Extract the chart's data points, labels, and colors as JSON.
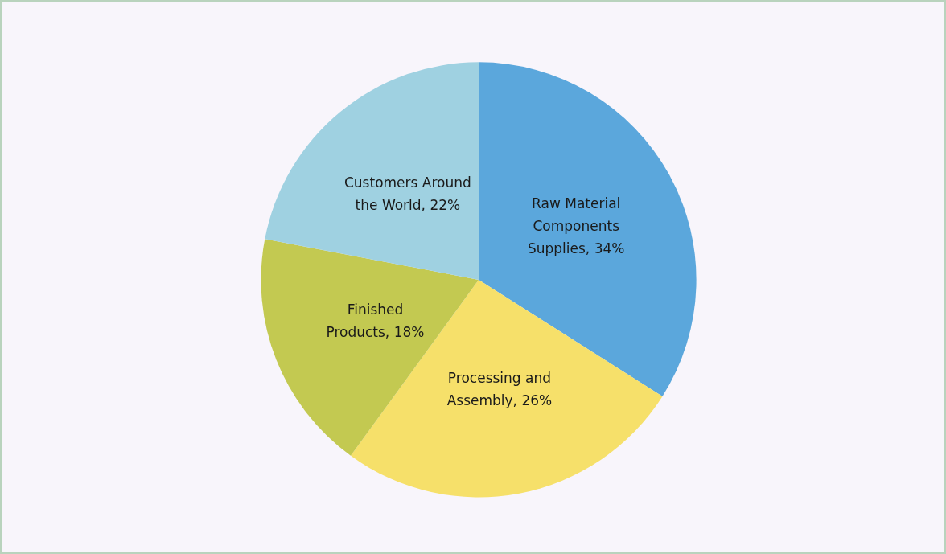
{
  "chart_data": {
    "type": "pie",
    "categories": [
      "Raw Material Components Supplies",
      "Processing and Assembly",
      "Finished Products",
      "Customers Around the World"
    ],
    "values": [
      34,
      26,
      18,
      22
    ],
    "colors": [
      "#5ba7dc",
      "#f6e06a",
      "#c3c951",
      "#9fd1e1"
    ],
    "value_labels": [
      ", 34%",
      ", 26%",
      ", 18%",
      ", 22%"
    ],
    "legend": false
  }
}
